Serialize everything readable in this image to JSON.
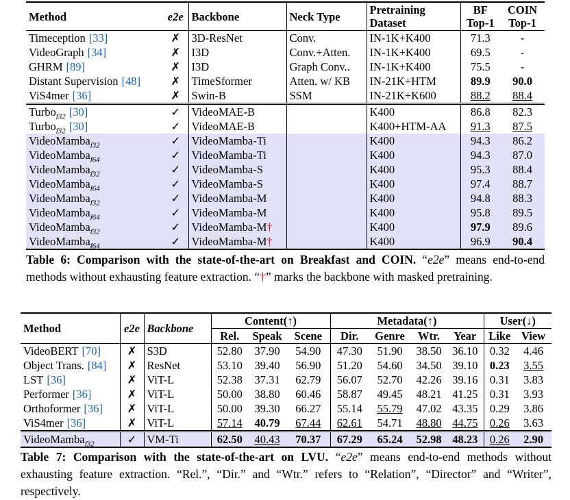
{
  "table6": {
    "header": [
      [
        "Method"
      ],
      [
        {
          "text": "e2e",
          "style": "i"
        }
      ],
      [
        "Backbone"
      ],
      [
        "Neck Type"
      ],
      [
        "Pretraining",
        "Dataset"
      ],
      [
        "BF",
        "Top-1"
      ],
      [
        "COIN",
        "Top-1"
      ]
    ],
    "rows": [
      {
        "cells": [
          {
            "name": "Timeception",
            "cite": "[33]"
          },
          "✗",
          "3D-ResNet",
          "Conv.",
          "IN-1K+K400",
          "71.3",
          "-"
        ]
      },
      {
        "cells": [
          {
            "name": "VideoGraph",
            "cite": "[34]"
          },
          "✗",
          "I3D",
          "Conv.+Atten.",
          "IN-1K+K400",
          "69.5",
          "-"
        ]
      },
      {
        "cells": [
          {
            "name": "GHRM",
            "cite": "[89]"
          },
          "✗",
          "I3D",
          "Graph Conv..",
          "IN-1K+K400",
          "75.5",
          "-"
        ]
      },
      {
        "cells": [
          {
            "name": "Distant Supervision",
            "cite": "[48]"
          },
          "✗",
          "TimeSformer",
          "Atten. w/ KB",
          "IN-21K+HTM",
          {
            "text": "89.9",
            "style": "b"
          },
          {
            "text": "90.0",
            "style": "b"
          }
        ]
      },
      {
        "cells": [
          {
            "name": "ViS4mer",
            "cite": "[36]"
          },
          "✗",
          "Swin-B",
          "SSM",
          "IN-21K+K600",
          {
            "text": "88.2",
            "style": "u"
          },
          {
            "text": "88.4",
            "style": "u"
          }
        ]
      },
      {
        "cells": [
          {
            "name": "Turbo",
            "sub": "f32",
            "cite": "[30]"
          },
          "✓",
          "VideoMAE-B",
          null,
          "K400",
          "86.8",
          "82.3"
        ]
      },
      {
        "cells": [
          {
            "name": "Turbo",
            "sub": "f32",
            "cite": "[30]"
          },
          "✓",
          "VideoMAE-B",
          null,
          "K400+HTM-AA",
          {
            "text": "91.3",
            "style": "u"
          },
          {
            "text": "87.5",
            "style": "u"
          }
        ]
      },
      {
        "highlight": true,
        "cells": [
          {
            "name": "VideoMamba",
            "sub": "f32"
          },
          "✓",
          "VideoMamba-Ti",
          null,
          "K400",
          "94.3",
          "86.2"
        ]
      },
      {
        "highlight": true,
        "cells": [
          {
            "name": "VideoMamba",
            "sub": "f64"
          },
          "✓",
          "VideoMamba-Ti",
          null,
          "K400",
          "94.3",
          "87.0"
        ]
      },
      {
        "highlight": true,
        "cells": [
          {
            "name": "VideoMamba",
            "sub": "f32"
          },
          "✓",
          "VideoMamba-S",
          null,
          "K400",
          "95.3",
          "88.4"
        ]
      },
      {
        "highlight": true,
        "cells": [
          {
            "name": "VideoMamba",
            "sub": "f64"
          },
          "✓",
          "VideoMamba-S",
          null,
          "K400",
          "97.4",
          "88.7"
        ]
      },
      {
        "highlight": true,
        "cells": [
          {
            "name": "VideoMamba",
            "sub": "f32"
          },
          "✓",
          "VideoMamba-M",
          null,
          "K400",
          "94.8",
          "88.3"
        ]
      },
      {
        "highlight": true,
        "cells": [
          {
            "name": "VideoMamba",
            "sub": "f64"
          },
          "✓",
          "VideoMamba-M",
          null,
          "K400",
          "95.8",
          "89.5"
        ]
      },
      {
        "highlight": true,
        "cells": [
          {
            "name": "VideoMamba",
            "sub": "f32"
          },
          "✓",
          {
            "text": "VideoMamba-M",
            "mark": "†"
          },
          null,
          "K400",
          {
            "text": "97.9",
            "style": "b"
          },
          "89.6"
        ]
      },
      {
        "highlight": true,
        "cells": [
          {
            "name": "VideoMamba",
            "sub": "f64"
          },
          "✓",
          {
            "text": "VideoMamba-M",
            "mark": "†"
          },
          null,
          "K400",
          "96.9",
          {
            "text": "90.4",
            "style": "b"
          }
        ]
      }
    ],
    "caption": [
      {
        "text": "Table 6: Comparison with the state-of-the-art on Breakfast and COIN.",
        "style": "b"
      },
      {
        "text": " “"
      },
      {
        "text": "e2e",
        "style": "i"
      },
      {
        "text": "” means end-to-end methods without exhausting feature extraction. “"
      },
      {
        "text": "†",
        "style": "red"
      },
      {
        "text": "” marks the backbone with masked pretraining."
      }
    ]
  },
  "table7": {
    "groups": [
      "Content(↑)",
      "Metadata(↑)",
      "User(↓)"
    ],
    "header": [
      "Method",
      {
        "text": "e2e",
        "style": "i"
      },
      {
        "text": "Backbone",
        "style": "i"
      }
    ],
    "subheader": [
      "Rel.",
      "Speak",
      "Scene",
      "Dir.",
      "Genre",
      "Wtr.",
      "Year",
      "Like",
      "View"
    ],
    "rows": [
      {
        "cells": [
          {
            "name": "VideoBERT",
            "cite": "[70]"
          },
          "✗",
          "S3D",
          "52.80",
          "37.90",
          "54.90",
          "47.30",
          "51.90",
          "38.50",
          "36.10",
          "0.32",
          "4.46"
        ]
      },
      {
        "cells": [
          {
            "name": "Object Trans.",
            "cite": "[84]"
          },
          "✗",
          "ResNet",
          "53.10",
          "39.40",
          "56.90",
          "51.20",
          "54.60",
          "34.50",
          "39.10",
          {
            "text": "0.23",
            "style": "b"
          },
          {
            "text": "3.55",
            "style": "u"
          }
        ]
      },
      {
        "cells": [
          {
            "name": "LST",
            "cite": "[36]"
          },
          "✗",
          "ViT-L",
          "52.38",
          "37.31",
          "62.79",
          "56.07",
          "52.70",
          "42.26",
          "39.16",
          "0.31",
          "3.83"
        ]
      },
      {
        "cells": [
          {
            "name": "Performer",
            "cite": "[36]"
          },
          "✗",
          "ViT-L",
          "50.00",
          "38.80",
          "60.46",
          "58.87",
          "49.45",
          "48.21",
          "41.25",
          "0.31",
          "3.93"
        ]
      },
      {
        "cells": [
          {
            "name": "Orthoformer",
            "cite": "[36]"
          },
          "✗",
          "ViT-L",
          "50.00",
          "39.30",
          "66.27",
          "55.14",
          {
            "text": "55.79",
            "style": "u"
          },
          "47.02",
          "43.35",
          "0.29",
          "3.86"
        ]
      },
      {
        "cells": [
          {
            "name": "ViS4mer",
            "cite": "[36]"
          },
          "✗",
          "ViT-L",
          {
            "text": "57.14",
            "style": "u"
          },
          {
            "text": "40.79",
            "style": "b"
          },
          {
            "text": "67.44",
            "style": "u"
          },
          {
            "text": "62.61",
            "style": "u"
          },
          "54.71",
          {
            "text": "48.80",
            "style": "u"
          },
          {
            "text": "44.75",
            "style": "u"
          },
          {
            "text": "0.26",
            "style": "u"
          },
          "3.63"
        ]
      },
      {
        "highlight": true,
        "cells": [
          {
            "name": "VideoMamba",
            "sub": "f32"
          },
          "✓",
          "VM-Ti",
          {
            "text": "62.50",
            "style": "b"
          },
          {
            "text": "40.43",
            "style": "u"
          },
          {
            "text": "70.37",
            "style": "b"
          },
          {
            "text": "67.29",
            "style": "b"
          },
          {
            "text": "65.24",
            "style": "b"
          },
          {
            "text": "52.98",
            "style": "b"
          },
          {
            "text": "48.23",
            "style": "b"
          },
          {
            "text": "0.26",
            "style": "u"
          },
          {
            "text": "2.90",
            "style": "b"
          }
        ]
      }
    ],
    "caption": [
      {
        "text": "Table 7: Comparison with the state-of-the-art on LVU.",
        "style": "b"
      },
      {
        "text": " “"
      },
      {
        "text": "e2e",
        "style": "i"
      },
      {
        "text": "” means end-to-end methods without exhausting feature extraction. “Rel.”, “Dir.” and “Wtr.” refers to “Relation”, “Director” and “Writer”, respectively."
      }
    ]
  }
}
